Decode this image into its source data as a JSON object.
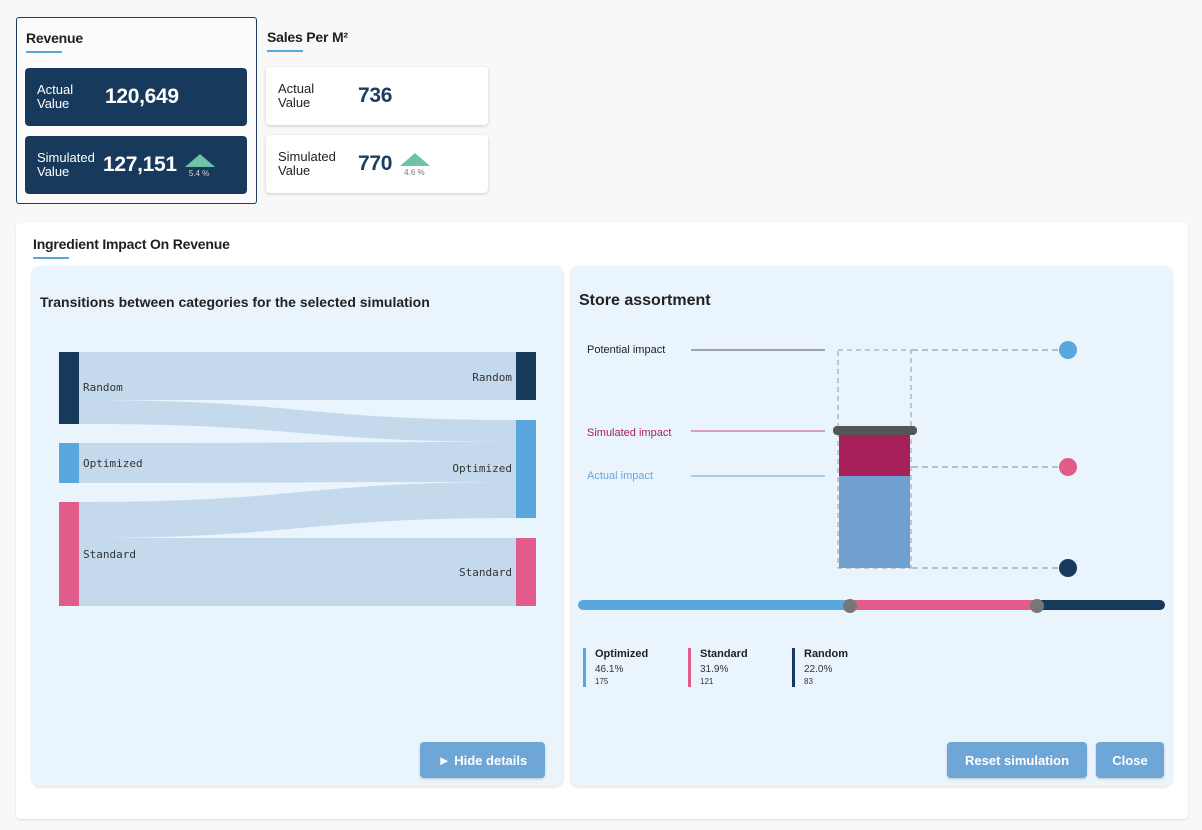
{
  "revenue": {
    "title": "Revenue",
    "actual_label": "Actual Value",
    "actual_value": "120,649",
    "simulated_label": "Simulated Value",
    "simulated_value": "127,151",
    "delta": "5.4 %"
  },
  "sales": {
    "title": "Sales Per M²",
    "actual_label": "Actual Value",
    "actual_value": "736",
    "simulated_label": "Simulated Value",
    "simulated_value": "770",
    "delta": "4.6 %"
  },
  "impact": {
    "title": "Ingredient Impact On Revenue",
    "transitions": {
      "title": "Transitions between categories for the selected simulation",
      "left_labels": [
        "Random",
        "Optimized",
        "Standard"
      ],
      "right_labels": [
        "Random",
        "Optimized",
        "Standard"
      ],
      "hide_button": "► Hide details"
    },
    "assortment": {
      "title": "Store assortment",
      "potential_label": "Potential impact",
      "simulated_label": "Simulated impact",
      "actual_label": "Actual impact",
      "legend": [
        {
          "name": "Optimized",
          "pct": "46.1%",
          "count": "175",
          "color": "#5aa7dd"
        },
        {
          "name": "Standard",
          "pct": "31.9%",
          "count": "121",
          "color": "#e15c8a"
        },
        {
          "name": "Random",
          "pct": "22.0%",
          "count": "83",
          "color": "#17395c"
        }
      ],
      "reset_button": "Reset simulation",
      "close_button": "Close"
    }
  },
  "colors": {
    "dark_navy": "#17395c",
    "blue": "#5aa7dd",
    "pink": "#e15c8a",
    "crimson": "#a8205a",
    "green_up": "#6fc2a9"
  }
}
